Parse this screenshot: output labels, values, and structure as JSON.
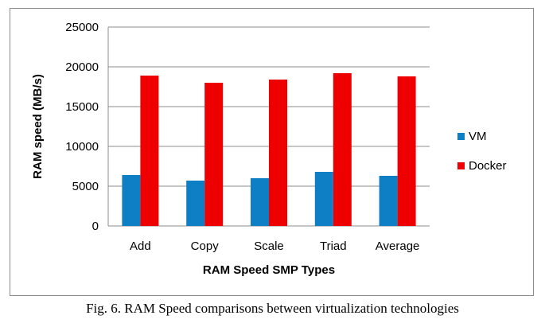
{
  "caption": "Fig. 6. RAM Speed comparisons between virtualization technologies",
  "chart_data": {
    "type": "bar",
    "title": "",
    "xlabel": "RAM Speed SMP Types",
    "ylabel": "RAM speed (MB/s)",
    "categories": [
      "Add",
      "Copy",
      "Scale",
      "Triad",
      "Average"
    ],
    "ylim": [
      0,
      25000
    ],
    "yticks": [
      0,
      5000,
      10000,
      15000,
      20000,
      25000
    ],
    "grid": true,
    "legend_position": "right",
    "series": [
      {
        "name": "VM",
        "color": "#0f7fc5",
        "values": [
          6400,
          5700,
          6000,
          6800,
          6300
        ]
      },
      {
        "name": "Docker",
        "color": "#ee0000",
        "values": [
          18900,
          18000,
          18400,
          19200,
          18800
        ]
      }
    ]
  }
}
